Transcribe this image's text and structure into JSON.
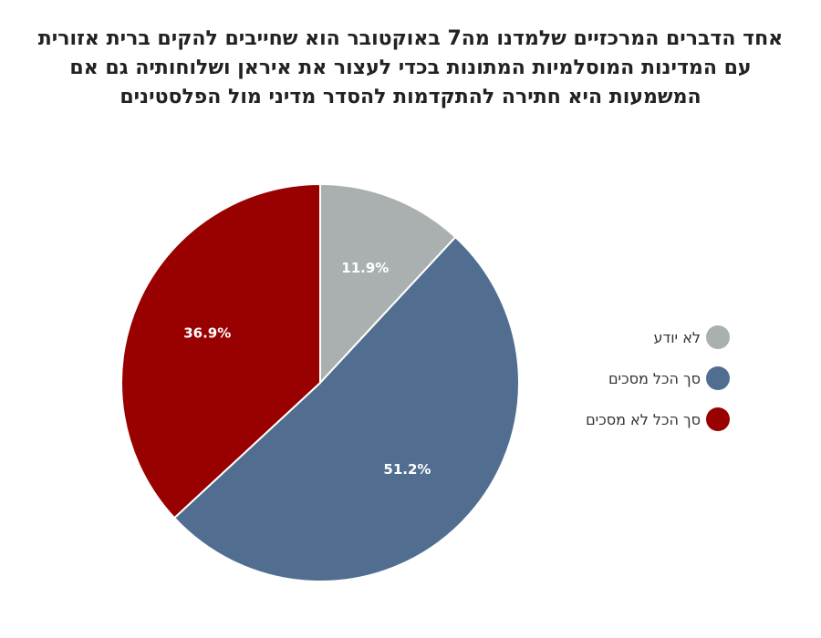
{
  "chart_data": {
    "type": "pie",
    "title": "אחד הדברים המרכזיים שלמדנו מה7 באוקטובר הוא שחייבים להקים ברית אזורית עם המדינות המוסלמיות המתונות בכדי לעצור את איראן ושלוחותיה גם אם המשמעות היא חתירה להתקדמות להסדר מדיני מול הפלסטינים",
    "slices": [
      {
        "label": "לא יודע",
        "value": 11.9,
        "value_label": "11.9%",
        "color": "#aab0b0"
      },
      {
        "label": "סך הכל מסכים",
        "value": 51.2,
        "value_label": "51.2%",
        "color": "#516e90"
      },
      {
        "label": "סך הכל לא מסכים",
        "value": 36.9,
        "value_label": "36.9%",
        "color": "#990000"
      }
    ],
    "legend_position": "right"
  }
}
